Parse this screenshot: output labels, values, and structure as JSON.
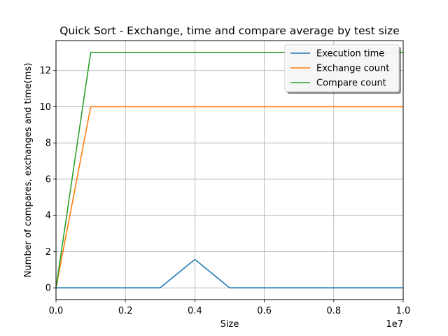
{
  "chart_data": {
    "type": "line",
    "title": "Quick Sort - Exchange, time and compare average by test size",
    "xlabel": "Size",
    "ylabel": "Number of compares, exchanges and time(ms)",
    "x_offset_label": "1e7",
    "xlim": [
      0,
      10000000
    ],
    "ylim": [
      -0.65,
      13.65
    ],
    "x_scale": 10000000,
    "x_ticks": [
      0,
      0.2,
      0.4,
      0.6,
      0.8,
      1.0
    ],
    "x_tick_labels": [
      "0.0",
      "0.2",
      "0.4",
      "0.6",
      "0.8",
      "1.0"
    ],
    "y_ticks": [
      0,
      2,
      4,
      6,
      8,
      10,
      12
    ],
    "y_tick_labels": [
      "0",
      "2",
      "4",
      "6",
      "8",
      "10",
      "12"
    ],
    "grid": true,
    "legend_position": "top-right",
    "series": [
      {
        "name": "Execution time",
        "color": "#1f77b4",
        "x": [
          0,
          1000000,
          2000000,
          3000000,
          4000000,
          5000000,
          6000000,
          7000000,
          8000000,
          9000000,
          10000000
        ],
        "values": [
          0,
          0,
          0,
          0,
          1.57,
          0,
          0,
          0,
          0,
          0,
          0
        ]
      },
      {
        "name": "Exchange count",
        "color": "#ff7f0e",
        "x": [
          0,
          1000000,
          2000000,
          3000000,
          4000000,
          5000000,
          6000000,
          7000000,
          8000000,
          9000000,
          10000000
        ],
        "values": [
          0,
          10,
          10,
          10,
          10,
          10,
          10,
          10,
          10,
          10,
          10
        ]
      },
      {
        "name": "Compare count",
        "color": "#2ca02c",
        "x": [
          0,
          1000000,
          2000000,
          3000000,
          4000000,
          5000000,
          6000000,
          7000000,
          8000000,
          9000000,
          10000000
        ],
        "values": [
          0,
          13,
          13,
          13,
          13,
          13,
          13,
          13,
          13,
          13,
          13
        ]
      }
    ]
  }
}
